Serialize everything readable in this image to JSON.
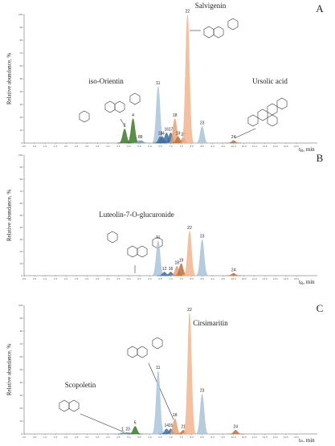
{
  "chart_data": [
    {
      "type": "chromatogram",
      "letter": "A",
      "ylabel": "Relative abundance, %",
      "xlabel": {
        "main": "t",
        "sub": "R",
        "rest": ", min"
      },
      "compounds": [
        "Salvigenin",
        "iso-Orientin",
        "Ursolic acid"
      ],
      "xlim": [
        0,
        14
      ],
      "ylim": [
        0,
        100
      ],
      "xticks": [
        {
          "value": 0,
          "label": "0.0"
        },
        {
          "value": 0.5,
          "label": "0.5"
        },
        {
          "value": 1,
          "label": "1.0"
        },
        {
          "value": 1.5,
          "label": "1.5"
        },
        {
          "value": 2,
          "label": "2.0"
        },
        {
          "value": 2.5,
          "label": "2.5"
        },
        {
          "value": 3,
          "label": "3.0"
        },
        {
          "value": 3.5,
          "label": "3.5"
        },
        {
          "value": 4,
          "label": "4.0"
        },
        {
          "value": 4.5,
          "label": "4.5"
        },
        {
          "value": 5,
          "label": "5.0"
        },
        {
          "value": 5.5,
          "label": "5.5"
        },
        {
          "value": 6,
          "label": "6.0"
        },
        {
          "value": 6.5,
          "label": "6.5"
        },
        {
          "value": 7,
          "label": "7.0"
        },
        {
          "value": 7.5,
          "label": "7.5"
        },
        {
          "value": 8,
          "label": "8.0"
        },
        {
          "value": 8.5,
          "label": "8.5"
        },
        {
          "value": 9,
          "label": "9.0"
        },
        {
          "value": 9.5,
          "label": "9.5"
        },
        {
          "value": 10,
          "label": "10.0"
        },
        {
          "value": 10.5,
          "label": "10.5"
        },
        {
          "value": 11,
          "label": "11.0"
        },
        {
          "value": 11.5,
          "label": "11.5"
        },
        {
          "value": 12,
          "label": "12.0"
        },
        {
          "value": 12.5,
          "label": "12.5"
        },
        {
          "value": 13,
          "label": "13.0"
        }
      ],
      "yticks": [
        0,
        10,
        20,
        30,
        40,
        50,
        60,
        70,
        80,
        90,
        100
      ],
      "peak_labels": [
        "2",
        "4",
        "8",
        "9",
        "11",
        "13",
        "14",
        "16",
        "17",
        "18",
        "19",
        "20",
        "22",
        "23",
        "24"
      ],
      "x": [
        4.8,
        5.2,
        5.5,
        5.6,
        6.4,
        6.5,
        6.6,
        6.8,
        7.0,
        7.2,
        7.35,
        7.6,
        7.8,
        8.5,
        10.0
      ],
      "values": [
        11,
        19,
        2,
        2,
        44,
        5,
        5,
        8,
        8,
        19,
        5,
        4,
        100,
        13,
        2
      ],
      "colors": [
        "#3a7a2a",
        "#3a7a2a",
        "#7a9fc0",
        "#7a9fc0",
        "#aac4dc",
        "#3d6ea3",
        "#3d6ea3",
        "#3d6ea3",
        "#3d6ea3",
        "#e8a070",
        "#c0703a",
        "#c0703a",
        "#f2b58e",
        "#a9c2d6",
        "#c0703a"
      ]
    },
    {
      "type": "chromatogram",
      "letter": "B",
      "ylabel": "Relative abundance, %",
      "xlabel": {
        "main": "t",
        "sub": "R",
        "rest": ", min"
      },
      "compounds": [
        "Luteolin-7-O-glucuronide"
      ],
      "xlim": [
        0,
        14
      ],
      "ylim": [
        0,
        100
      ],
      "xticks": [
        {
          "value": 0,
          "label": "0.0"
        },
        {
          "value": 0.5,
          "label": "0.5"
        },
        {
          "value": 1,
          "label": "1.0"
        },
        {
          "value": 1.5,
          "label": "1.5"
        },
        {
          "value": 2,
          "label": "2.0"
        },
        {
          "value": 2.5,
          "label": "2.5"
        },
        {
          "value": 3,
          "label": "3.0"
        },
        {
          "value": 3.5,
          "label": "3.5"
        },
        {
          "value": 4,
          "label": "4.0"
        },
        {
          "value": 4.5,
          "label": "4.5"
        },
        {
          "value": 5,
          "label": "5.0"
        },
        {
          "value": 5.5,
          "label": "5.5"
        },
        {
          "value": 6,
          "label": "6.0"
        },
        {
          "value": 6.5,
          "label": "6.5"
        },
        {
          "value": 7,
          "label": "7.0"
        },
        {
          "value": 7.5,
          "label": "7.5"
        },
        {
          "value": 8,
          "label": "8.0"
        },
        {
          "value": 8.5,
          "label": "8.5"
        },
        {
          "value": 9,
          "label": "9.0"
        },
        {
          "value": 9.5,
          "label": "9.5"
        },
        {
          "value": 10,
          "label": "10.0"
        },
        {
          "value": 10.5,
          "label": "10.5"
        },
        {
          "value": 11,
          "label": "11.0"
        },
        {
          "value": 11.5,
          "label": "11.5"
        },
        {
          "value": 12,
          "label": "12.0"
        },
        {
          "value": 12.5,
          "label": "12.5"
        },
        {
          "value": 13,
          "label": "13.0"
        }
      ],
      "yticks": [
        0,
        10,
        20,
        30,
        40,
        50,
        60,
        70,
        80,
        90,
        100
      ],
      "peak_labels": [
        "11",
        "12",
        "16",
        "18",
        "19",
        "22",
        "23",
        "24"
      ],
      "x": [
        6.4,
        6.7,
        7.0,
        7.3,
        7.5,
        7.9,
        8.5,
        10.0
      ],
      "values": [
        29,
        3,
        3,
        8,
        10,
        37,
        30,
        2
      ],
      "colors": [
        "#aac4dc",
        "#3d6ea3",
        "#3d6ea3",
        "#e8a070",
        "#c0703a",
        "#f2b58e",
        "#a9c2d6",
        "#c0703a"
      ]
    },
    {
      "type": "chromatogram",
      "letter": "C",
      "ylabel": "Relative abundance, %",
      "xlabel": {
        "main": "t",
        "sub": "R",
        "rest": ", min"
      },
      "compounds": [
        "Cirsimaritin",
        "Scopoletin"
      ],
      "xlim": [
        0,
        14
      ],
      "ylim": [
        0,
        100
      ],
      "xticks": [
        {
          "value": 0,
          "label": "0.0"
        },
        {
          "value": 0.5,
          "label": "0.5"
        },
        {
          "value": 1,
          "label": "1.0"
        },
        {
          "value": 1.5,
          "label": "1.5"
        },
        {
          "value": 2,
          "label": "2.0"
        },
        {
          "value": 2.5,
          "label": "2.5"
        },
        {
          "value": 3,
          "label": "3.0"
        },
        {
          "value": 3.5,
          "label": "3.5"
        },
        {
          "value": 4,
          "label": "4.0"
        },
        {
          "value": 4.5,
          "label": "4.5"
        },
        {
          "value": 5,
          "label": "5.0"
        },
        {
          "value": 5.5,
          "label": "5.5"
        },
        {
          "value": 6,
          "label": "6.0"
        },
        {
          "value": 6.5,
          "label": "6.5"
        },
        {
          "value": 7,
          "label": "7.0"
        },
        {
          "value": 7.5,
          "label": "7.5"
        },
        {
          "value": 8,
          "label": "8.0"
        },
        {
          "value": 8.5,
          "label": "8.5"
        },
        {
          "value": 9,
          "label": "9.0"
        },
        {
          "value": 9.5,
          "label": "9.5"
        },
        {
          "value": 10,
          "label": "10.0"
        },
        {
          "value": 10.5,
          "label": "10.5"
        },
        {
          "value": 11,
          "label": "11.0"
        },
        {
          "value": 11.5,
          "label": "11.5"
        },
        {
          "value": 12,
          "label": "12.0"
        },
        {
          "value": 12.5,
          "label": "12.5"
        },
        {
          "value": 13,
          "label": "13.0"
        }
      ],
      "yticks": [
        0,
        10,
        20,
        30,
        40,
        50,
        60,
        70,
        80,
        90,
        100
      ],
      "peak_labels": [
        "1",
        "2",
        "3",
        "6",
        "11",
        "14",
        "15",
        "18",
        "21",
        "22",
        "23",
        "24"
      ],
      "x": [
        4.7,
        4.9,
        5.0,
        5.3,
        6.4,
        6.8,
        7.0,
        7.2,
        7.6,
        7.9,
        8.5,
        10.1
      ],
      "values": [
        1,
        1,
        1,
        6,
        49,
        4,
        4,
        12,
        3,
        94,
        31,
        3
      ],
      "colors": [
        "#7a9fc0",
        "#3a7a2a",
        "#7a9fc0",
        "#3a7a2a",
        "#aac4dc",
        "#3d6ea3",
        "#3d6ea3",
        "#e8a070",
        "#c0703a",
        "#f2b58e",
        "#a9c2d6",
        "#c0703a"
      ]
    }
  ]
}
